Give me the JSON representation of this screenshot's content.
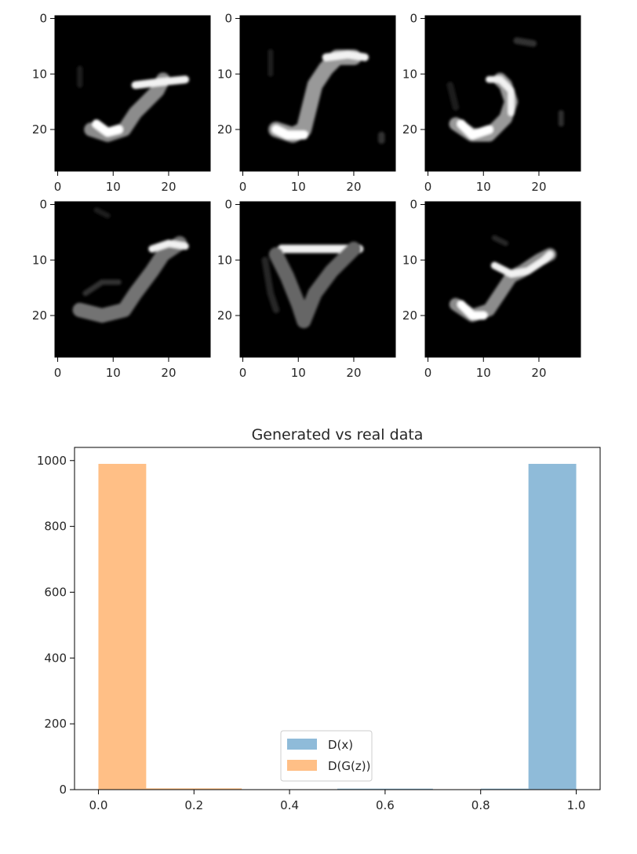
{
  "chart_data": [
    {
      "type": "image-grid",
      "rows": 2,
      "cols": 3,
      "image_size": 28,
      "x_ticks": [
        0,
        10,
        20
      ],
      "y_ticks": [
        0,
        10,
        20
      ],
      "colormap": "gray",
      "panels": [
        {
          "strokes": [
            {
              "p": [
                [
                  6,
                  20
                ],
                [
                  9,
                  21
                ],
                [
                  12,
                  20
                ],
                [
                  14,
                  17
                ],
                [
                  16,
                  15
                ],
                [
                  18,
                  13
                ],
                [
                  19,
                  11
                ]
              ],
              "w": 2.5,
              "v": 0.55
            },
            {
              "p": [
                [
                  14,
                  12
                ],
                [
                  18,
                  11.5
                ],
                [
                  23,
                  11
                ]
              ],
              "w": 1.4,
              "v": 0.95
            },
            {
              "p": [
                [
                  7,
                  19
                ],
                [
                  9,
                  20.5
                ],
                [
                  11,
                  20
                ]
              ],
              "w": 1.6,
              "v": 1.0
            },
            {
              "p": [
                [
                  4,
                  9
                ],
                [
                  4,
                  12
                ]
              ],
              "w": 1.0,
              "v": 0.12
            }
          ]
        },
        {
          "strokes": [
            {
              "p": [
                [
                  6,
                  20
                ],
                [
                  9,
                  21
                ],
                [
                  11,
                  20
                ],
                [
                  12,
                  16
                ],
                [
                  13,
                  12
                ],
                [
                  15,
                  9
                ],
                [
                  17,
                  7
                ],
                [
                  20,
                  7
                ]
              ],
              "w": 2.8,
              "v": 0.6
            },
            {
              "p": [
                [
                  15,
                  7
                ],
                [
                  19,
                  6.5
                ],
                [
                  22,
                  7
                ]
              ],
              "w": 1.4,
              "v": 0.95
            },
            {
              "p": [
                [
                  6,
                  20
                ],
                [
                  8,
                  21
                ],
                [
                  11,
                  21
                ]
              ],
              "w": 1.6,
              "v": 1.0
            },
            {
              "p": [
                [
                  25,
                  21
                ],
                [
                  25,
                  22
                ]
              ],
              "w": 1.2,
              "v": 0.2
            },
            {
              "p": [
                [
                  5,
                  6
                ],
                [
                  5,
                  10
                ]
              ],
              "w": 1.0,
              "v": 0.12
            }
          ]
        },
        {
          "strokes": [
            {
              "p": [
                [
                  5,
                  19
                ],
                [
                  8,
                  21
                ],
                [
                  11,
                  21
                ],
                [
                  14,
                  18
                ],
                [
                  15,
                  15
                ],
                [
                  14,
                  12
                ],
                [
                  13,
                  11
                ]
              ],
              "w": 2.4,
              "v": 0.6
            },
            {
              "p": [
                [
                  11,
                  11
                ],
                [
                  13,
                  11
                ],
                [
                  15,
                  13
                ],
                [
                  15,
                  17
                ]
              ],
              "w": 1.2,
              "v": 0.95
            },
            {
              "p": [
                [
                  6,
                  19
                ],
                [
                  8,
                  21
                ],
                [
                  11,
                  20
                ]
              ],
              "w": 1.6,
              "v": 1.0
            },
            {
              "p": [
                [
                  16,
                  4
                ],
                [
                  19,
                  4.5
                ]
              ],
              "w": 1.2,
              "v": 0.2
            },
            {
              "p": [
                [
                  24,
                  17
                ],
                [
                  24,
                  19
                ]
              ],
              "w": 1.0,
              "v": 0.18
            },
            {
              "p": [
                [
                  4,
                  12
                ],
                [
                  5,
                  16
                ]
              ],
              "w": 1.2,
              "v": 0.12
            }
          ]
        },
        {
          "strokes": [
            {
              "p": [
                [
                  4,
                  19
                ],
                [
                  8,
                  20
                ],
                [
                  12,
                  19
                ],
                [
                  14,
                  16
                ],
                [
                  17,
                  12
                ],
                [
                  19,
                  9
                ],
                [
                  22,
                  7
                ]
              ],
              "w": 2.6,
              "v": 0.45
            },
            {
              "p": [
                [
                  17,
                  8
                ],
                [
                  20,
                  7
                ],
                [
                  23,
                  7.5
                ]
              ],
              "w": 1.3,
              "v": 0.95
            },
            {
              "p": [
                [
                  5,
                  16
                ],
                [
                  8,
                  14
                ],
                [
                  11,
                  14
                ]
              ],
              "w": 1.0,
              "v": 0.2
            },
            {
              "p": [
                [
                  7,
                  1
                ],
                [
                  9,
                  2
                ]
              ],
              "w": 1.0,
              "v": 0.1
            }
          ]
        },
        {
          "strokes": [
            {
              "p": [
                [
                  7,
                  8
                ],
                [
                  12,
                  8
                ],
                [
                  17,
                  8
                ],
                [
                  21,
                  8
                ]
              ],
              "w": 1.5,
              "v": 0.95
            },
            {
              "p": [
                [
                  6,
                  9
                ],
                [
                  8,
                  13
                ],
                [
                  10,
                  18
                ],
                [
                  11,
                  21
                ],
                [
                  13,
                  16
                ],
                [
                  16,
                  12
                ],
                [
                  20,
                  8
                ]
              ],
              "w": 2.6,
              "v": 0.4
            },
            {
              "p": [
                [
                  4,
                  10
                ],
                [
                  5,
                  16
                ],
                [
                  6,
                  19
                ]
              ],
              "w": 1.2,
              "v": 0.15
            }
          ]
        },
        {
          "strokes": [
            {
              "p": [
                [
                  5,
                  18
                ],
                [
                  8,
                  20
                ],
                [
                  11,
                  19
                ],
                [
                  13,
                  16
                ],
                [
                  15,
                  13
                ],
                [
                  17,
                  12
                ],
                [
                  20,
                  10
                ],
                [
                  22,
                  9
                ]
              ],
              "w": 2.3,
              "v": 0.55
            },
            {
              "p": [
                [
                  12,
                  11
                ],
                [
                  15,
                  12.5
                ],
                [
                  18,
                  12
                ],
                [
                  21,
                  10
                ],
                [
                  22,
                  9
                ]
              ],
              "w": 1.3,
              "v": 0.95
            },
            {
              "p": [
                [
                  6,
                  18
                ],
                [
                  8,
                  20
                ],
                [
                  10,
                  20
                ]
              ],
              "w": 1.5,
              "v": 1.0
            },
            {
              "p": [
                [
                  12,
                  6
                ],
                [
                  14,
                  7
                ]
              ],
              "w": 1.0,
              "v": 0.15
            }
          ]
        }
      ]
    },
    {
      "type": "bar",
      "title": "Generated vs real data",
      "xlim": [
        -0.05,
        1.05
      ],
      "ylim": [
        0,
        1040
      ],
      "x_ticks": [
        0.0,
        0.2,
        0.4,
        0.6,
        0.8,
        1.0
      ],
      "y_ticks": [
        0,
        200,
        400,
        600,
        800,
        1000
      ],
      "legend_loc": "lower center",
      "bin_width": 0.1,
      "series": [
        {
          "name": "D(x)",
          "color": "#1f77b4",
          "alpha": 0.5,
          "bins": [
            [
              0.5,
              3
            ],
            [
              0.6,
              3
            ],
            [
              0.8,
              3
            ],
            [
              0.9,
              990
            ]
          ]
        },
        {
          "name": "D(G(z))",
          "color": "#ff7f0e",
          "alpha": 0.5,
          "bins": [
            [
              0.0,
              990
            ],
            [
              0.1,
              4
            ],
            [
              0.2,
              4
            ]
          ]
        }
      ]
    }
  ]
}
